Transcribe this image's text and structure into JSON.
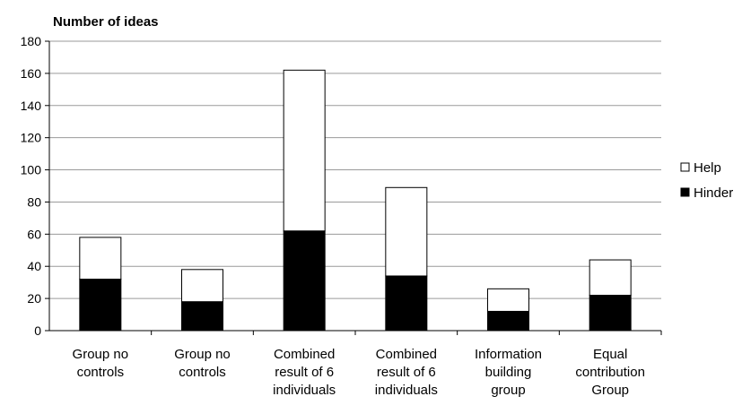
{
  "chart_data": {
    "type": "bar",
    "stacked": true,
    "ylabel": "Number of ideas",
    "ylim": [
      0,
      180
    ],
    "yticks": [
      0,
      20,
      40,
      60,
      80,
      100,
      120,
      140,
      160,
      180
    ],
    "grid": true,
    "legend_position": "right",
    "categories": [
      [
        "Group no",
        "controls"
      ],
      [
        "Group no",
        "controls"
      ],
      [
        "Combined",
        "result of 6",
        "individuals"
      ],
      [
        "Combined",
        "result of 6",
        "individuals"
      ],
      [
        "Information",
        "building",
        "group"
      ],
      [
        "Equal",
        "contribution",
        "Group"
      ]
    ],
    "series": [
      {
        "name": "Hinder",
        "color": "#000000",
        "values": [
          32,
          18,
          62,
          34,
          12,
          22
        ]
      },
      {
        "name": "Help",
        "color": "#ffffff",
        "values": [
          26,
          20,
          100,
          55,
          14,
          22
        ]
      }
    ],
    "legend": [
      "Help",
      "Hinder"
    ]
  }
}
